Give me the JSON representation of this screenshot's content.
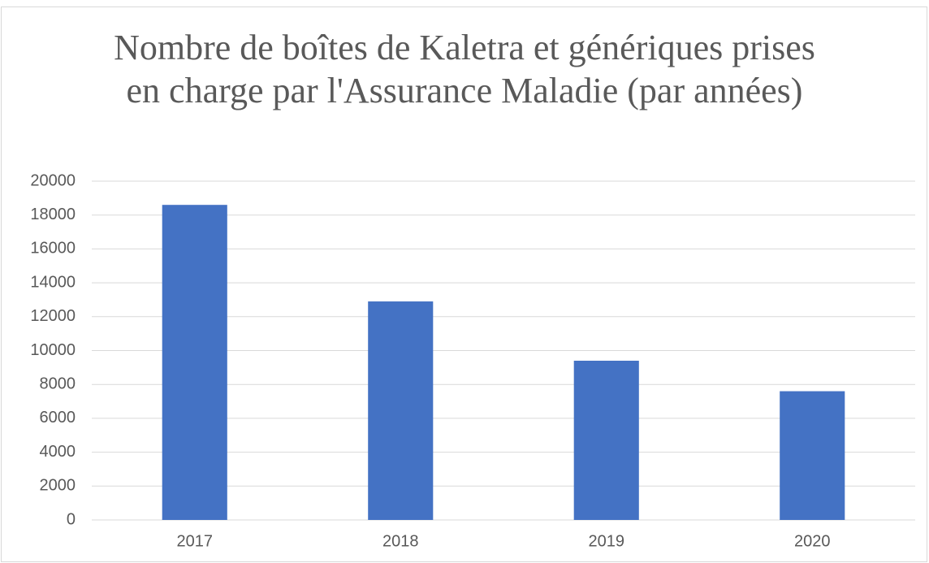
{
  "chart_data": {
    "type": "bar",
    "title": "Nombre de boîtes de Kaletra et génériques prises en charge par l'Assurance Maladie (par années)",
    "categories": [
      "2017",
      "2018",
      "2019",
      "2020"
    ],
    "values": [
      18600,
      12900,
      9400,
      7600
    ],
    "color": "#4472c4",
    "ylim": [
      0,
      20000
    ],
    "yticks": [
      0,
      2000,
      4000,
      6000,
      8000,
      10000,
      12000,
      14000,
      16000,
      18000,
      20000
    ],
    "grid": true
  }
}
